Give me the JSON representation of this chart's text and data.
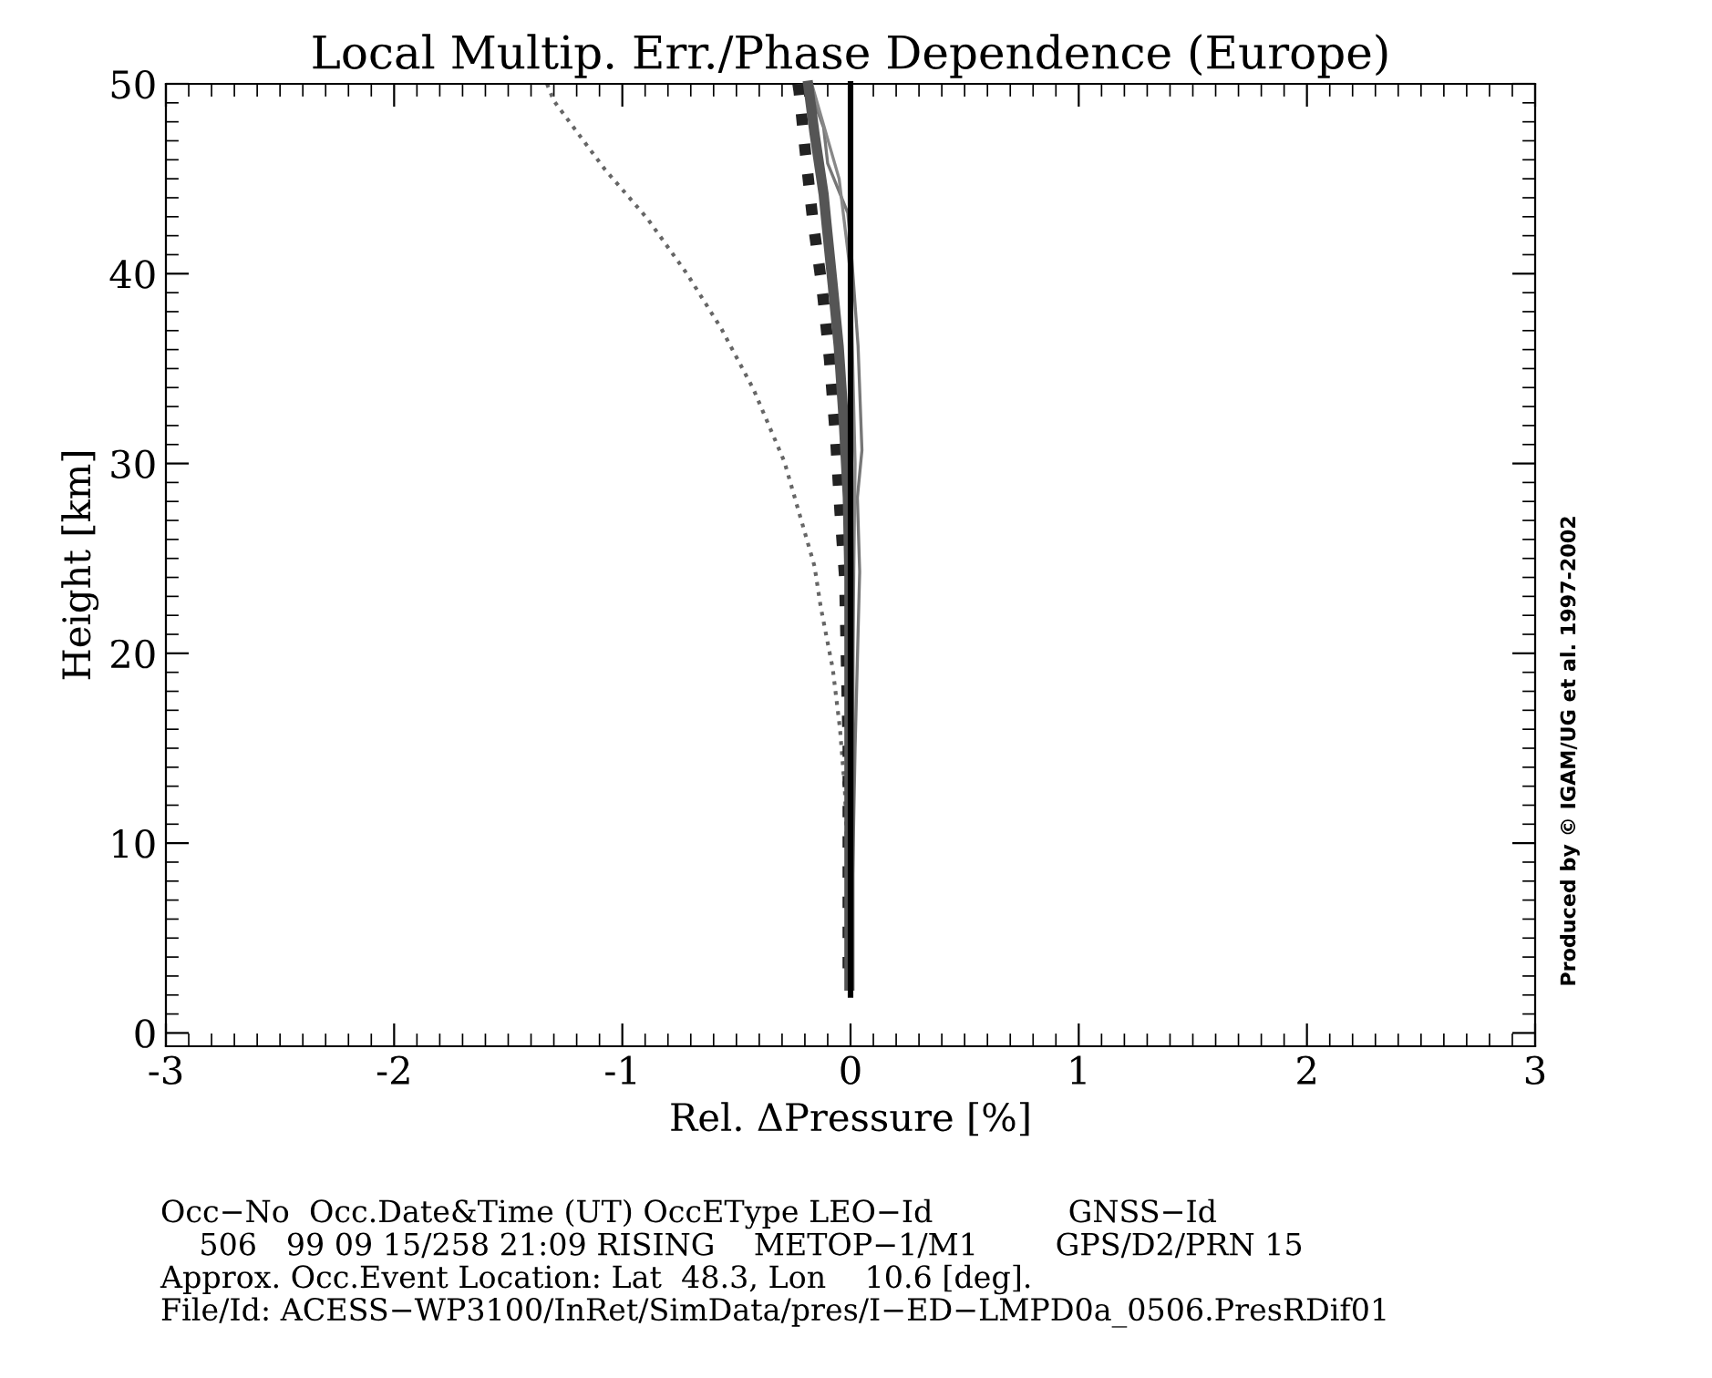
{
  "chart_data": {
    "type": "line",
    "title": "Local Multip. Err./Phase Dependence (Europe)",
    "xlabel": "Rel. ΔPressure [%]",
    "ylabel": "Height [km]",
    "xlim": [
      -3,
      3
    ],
    "xticks": [
      -3,
      -2,
      -1,
      0,
      1,
      2,
      3
    ],
    "ylim": [
      -0.7,
      50
    ],
    "yticks": [
      0,
      10,
      20,
      30,
      40,
      50
    ],
    "legend": false,
    "marker": "none",
    "series": [
      {
        "color": "#666666",
        "line_style": "dotted",
        "x": [
          -1.33,
          -1.3,
          -1.077,
          -0.89,
          -0.717,
          -0.566,
          -0.425,
          -0.29,
          -0.158,
          -0.13,
          -0.078,
          -0.046,
          -0.025,
          -0.01,
          0.0
        ],
        "values": [
          50,
          49.1,
          45.5,
          42.9,
          40.0,
          37.1,
          33.9,
          30.1,
          24.6,
          22.4,
          19.2,
          16.0,
          12.8,
          8,
          2.5
        ]
      },
      {
        "color": "#222222",
        "line_style": "dotted",
        "x": [
          -0.23,
          -0.225,
          -0.198,
          -0.166,
          -0.126,
          -0.092,
          -0.065,
          -0.046,
          -0.025,
          -0.01,
          -0.01
        ],
        "values": [
          50,
          49.6,
          46.4,
          42.9,
          39.4,
          35.5,
          31.3,
          27.5,
          23.9,
          15,
          2.5
        ]
      },
      {
        "color": "#777777",
        "line_style": "solid",
        "x": [
          -0.185,
          -0.118,
          -0.1,
          -0.012,
          0.0,
          0.033,
          0.05,
          0.03,
          0.04,
          0.02,
          0.0
        ],
        "values": [
          49.9,
          47.7,
          45.8,
          43.2,
          41.7,
          36.2,
          30.7,
          28.2,
          24.3,
          15,
          2.5
        ]
      },
      {
        "color": "#888888",
        "line_style": "solid",
        "x": [
          -0.17,
          -0.05,
          0.0,
          0.02,
          0.01,
          0.0
        ],
        "values": [
          50,
          45,
          40,
          30,
          20,
          2.5
        ]
      },
      {
        "color": "#555555",
        "line_style": "solid",
        "x": [
          -0.185,
          -0.158,
          -0.118,
          -0.105,
          -0.078,
          -0.052,
          -0.03,
          -0.012,
          -0.005,
          -0.005
        ],
        "values": [
          49.9,
          47.4,
          44.2,
          42.6,
          39.4,
          36.2,
          32.3,
          28.2,
          24,
          2.5
        ]
      },
      {
        "color": "#000000",
        "line_style": "solid",
        "x": [
          0,
          0,
          0,
          0,
          0,
          0,
          0
        ],
        "values": [
          2,
          10,
          20,
          30,
          40,
          45,
          50
        ]
      }
    ],
    "annotations": [
      "Produced by © IGAM/UG et al. 1997-2002",
      "Occ−No  Occ.Date&Time (UT) OccEType LEO−Id              GNSS−Id",
      "    506   99 09 15/258 21:09 RISING    METOP−1/M1        GPS/D2/PRN 15",
      "Approx. Occ.Event Location: Lat  48.3, Lon    10.6 [deg].",
      "File/Id: ACESS−WP3100/InRet/SimData/pres/I−ED−LMPD0a_0506.PresRDif01"
    ]
  }
}
